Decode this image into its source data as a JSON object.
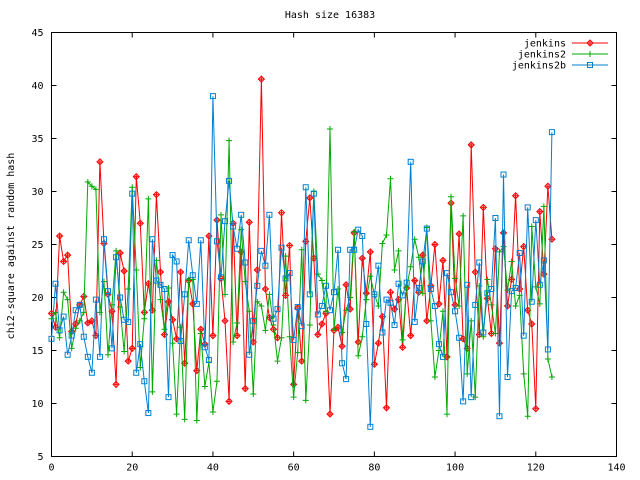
{
  "chart_data": {
    "type": "line",
    "title": "Hash size 16383",
    "xlabel": "",
    "ylabel": "chi2-square against random hash",
    "xlim": [
      0,
      140
    ],
    "ylim": [
      5,
      45
    ],
    "xticks": [
      "0",
      "20",
      "40",
      "60",
      "80",
      "100",
      "120",
      "140"
    ],
    "yticks": [
      "5",
      "10",
      "15",
      "20",
      "25",
      "30",
      "35",
      "40",
      "45"
    ],
    "legend_position": "top-right",
    "grid": false,
    "series": [
      {
        "name": "jenkins",
        "color": "#ff0000",
        "marker": "plus-diamond",
        "values": [
          18.5,
          17.2,
          25.8,
          23.4,
          24.0,
          16.8,
          17.5,
          19.3,
          20.1,
          17.6,
          17.8,
          16.4,
          32.8,
          25.1,
          20.3,
          18.7,
          11.8,
          24.2,
          22.5,
          14.0,
          15.2,
          31.4,
          27.0,
          18.6,
          21.3,
          18.8,
          29.7,
          22.4,
          16.5,
          19.6,
          17.9,
          16.1,
          22.4,
          13.8,
          21.6,
          19.4,
          13.1,
          17.0,
          15.6,
          25.8,
          16.4,
          27.3,
          21.8,
          17.8,
          10.2,
          27.0,
          16.4,
          24.3,
          11.4,
          27.1,
          15.8,
          22.6,
          40.6,
          20.8,
          18.1,
          17.0,
          16.2,
          28.0,
          20.2,
          24.9,
          11.8,
          19.0,
          14.0,
          25.3,
          29.4,
          23.7,
          16.5,
          17.5,
          18.5,
          9.0,
          16.9,
          17.2,
          15.4,
          21.2,
          18.9,
          26.1,
          15.8,
          23.7,
          20.4,
          24.3,
          13.7,
          15.7,
          18.2,
          9.6,
          20.5,
          18.9,
          19.8,
          15.3,
          20.9,
          16.4,
          21.6,
          20.5,
          24.0,
          17.8,
          21.1,
          25.0,
          19.4,
          23.5,
          14.4,
          28.9,
          19.3,
          26.0,
          16.1,
          15.2,
          34.4,
          22.4,
          16.5,
          28.5,
          19.9,
          16.6,
          24.6,
          15.7,
          26.1,
          19.2,
          21.7,
          29.6,
          20.8,
          24.8,
          18.8,
          17.5,
          9.5,
          28.1,
          22.2,
          30.5,
          25.5
        ]
      },
      {
        "name": "jenkins2",
        "color": "#00aa00",
        "marker": "plus",
        "values": [
          18.0,
          18.6,
          16.2,
          20.5,
          19.8,
          15.2,
          17.1,
          17.8,
          18.6,
          30.9,
          30.5,
          30.2,
          18.6,
          21.5,
          14.6,
          19.3,
          24.4,
          19.1,
          14.9,
          20.8,
          30.4,
          22.6,
          13.4,
          18.0,
          29.3,
          11.1,
          23.5,
          19.8,
          17.0,
          20.9,
          15.7,
          9.0,
          17.2,
          8.5,
          21.7,
          21.7,
          8.4,
          16.6,
          11.6,
          13.9,
          9.2,
          12.1,
          27.8,
          20.3,
          34.8,
          15.8,
          17.6,
          26.4,
          21.5,
          18.7,
          10.9,
          19.6,
          19.2,
          16.9,
          20.3,
          17.4,
          14.0,
          16.2,
          23.9,
          16.3,
          10.6,
          14.8,
          24.5,
          10.3,
          17.4,
          30.0,
          22.2,
          21.6,
          18.7,
          35.9,
          17.0,
          20.8,
          16.7,
          18.8,
          20.0,
          26.2,
          14.5,
          16.3,
          19.8,
          22.0,
          20.3,
          19.2,
          25.1,
          25.9,
          31.2,
          22.6,
          24.4,
          16.0,
          21.0,
          22.9,
          25.5,
          23.8,
          20.4,
          26.6,
          17.8,
          12.5,
          15.0,
          18.7,
          9.0,
          29.5,
          21.8,
          19.2,
          27.7,
          12.8,
          17.8,
          10.6,
          21.1,
          16.3,
          21.7,
          19.3,
          16.6,
          24.3,
          24.8,
          20.7,
          23.4,
          19.2,
          20.2,
          12.8,
          8.8,
          26.7,
          21.0,
          19.4,
          28.6,
          14.2,
          12.5
        ]
      },
      {
        "name": "jenkins2b",
        "color": "#0080d0",
        "marker": "square",
        "values": [
          16.1,
          21.3,
          16.9,
          18.2,
          14.6,
          16.4,
          18.8,
          19.3,
          16.3,
          14.4,
          12.9,
          19.8,
          14.4,
          25.5,
          20.6,
          15.2,
          23.8,
          20.0,
          17.9,
          17.7,
          29.8,
          12.9,
          15.6,
          12.1,
          9.1,
          25.5,
          21.6,
          21.2,
          20.8,
          10.6,
          24.0,
          23.4,
          15.9,
          20.3,
          25.4,
          22.1,
          19.4,
          25.4,
          15.3,
          14.1,
          39.0,
          25.3,
          21.9,
          27.2,
          31.0,
          26.7,
          24.6,
          27.8,
          23.3,
          14.6,
          17.8,
          21.1,
          24.4,
          23.0,
          27.8,
          18.0,
          18.9,
          24.7,
          21.8,
          22.3,
          16.0,
          19.1,
          17.3,
          30.4,
          20.3,
          29.8,
          18.4,
          19.2,
          21.1,
          18.8,
          20.5,
          24.5,
          13.8,
          12.3,
          24.5,
          24.5,
          26.4,
          25.8,
          17.5,
          7.8,
          20.3,
          23.0,
          16.7,
          19.8,
          19.5,
          17.4,
          21.3,
          20.2,
          21.4,
          32.8,
          17.7,
          20.9,
          23.4,
          26.5,
          20.8,
          19.2,
          15.6,
          14.4,
          22.3,
          20.5,
          18.7,
          16.2,
          10.2,
          21.2,
          10.6,
          19.3,
          23.3,
          16.7,
          20.4,
          20.8,
          27.5,
          8.8,
          31.6,
          12.5,
          20.6,
          20.9,
          24.2,
          16.4,
          28.5,
          19.6,
          27.3,
          21.2,
          23.5,
          15.1,
          35.6
        ]
      }
    ]
  }
}
